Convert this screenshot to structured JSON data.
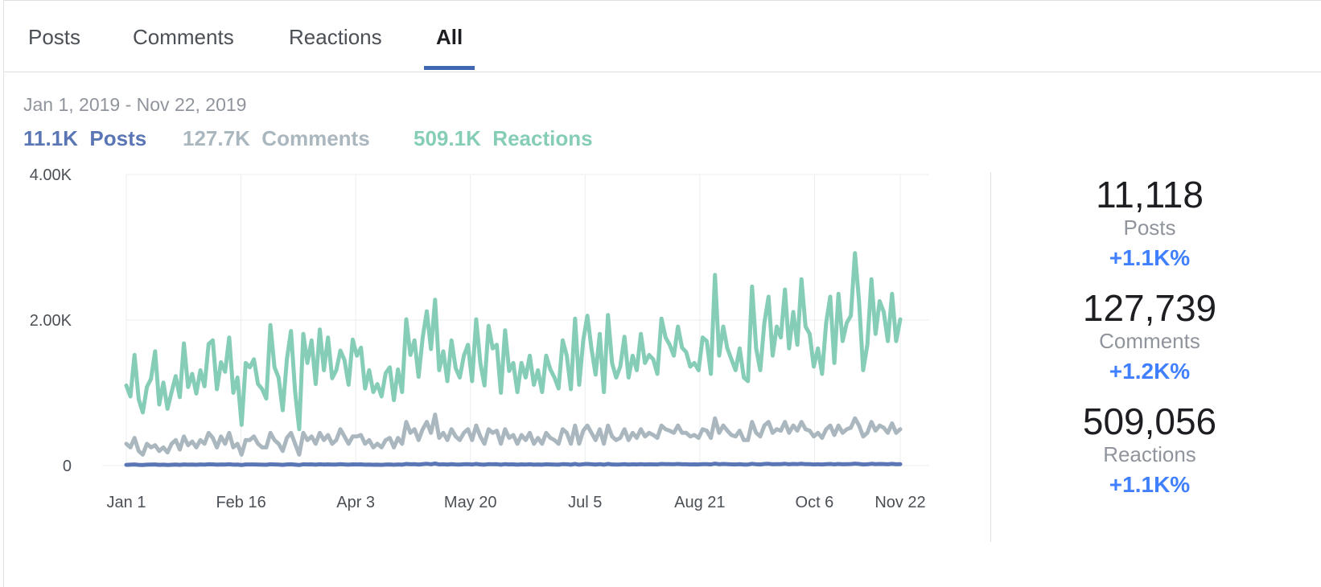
{
  "tabs": [
    {
      "label": "Posts",
      "active": false
    },
    {
      "label": "Comments",
      "active": false
    },
    {
      "label": "Reactions",
      "active": false
    },
    {
      "label": "All",
      "active": true
    }
  ],
  "date_range": "Jan 1, 2019 - Nov 22, 2019",
  "totals": [
    {
      "value": "11.1K",
      "label": "Posts",
      "color": "#5b76b4"
    },
    {
      "value": "127.7K",
      "label": "Comments",
      "color": "#aab7bf"
    },
    {
      "value": "509.1K",
      "label": "Reactions",
      "color": "#86cdb8"
    }
  ],
  "stats": [
    {
      "number": "11,118",
      "label": "Posts",
      "change": "+1.1K%"
    },
    {
      "number": "127,739",
      "label": "Comments",
      "change": "+1.2K%"
    },
    {
      "number": "509,056",
      "label": "Reactions",
      "change": "+1.1K%"
    }
  ],
  "colors": {
    "accent": "#4267b2",
    "change": "#4080ff",
    "posts": "#5b76b4",
    "comments": "#aab7bf",
    "reactions": "#86cdb8"
  },
  "chart_data": {
    "type": "line",
    "xlabel": "",
    "ylabel": "",
    "x_ticks": [
      "Jan 1",
      "Feb 16",
      "Apr 3",
      "May 20",
      "Jul 5",
      "Aug 21",
      "Oct 6",
      "Nov 22"
    ],
    "y_ticks": [
      "0",
      "2.00K",
      "4.00K"
    ],
    "ylim": [
      0,
      4000
    ],
    "grid": true,
    "x_start": "2019-01-01",
    "x_end": "2019-11-22",
    "series": [
      {
        "name": "Reactions",
        "color": "#86cdb8",
        "values": [
          1100,
          1000,
          1500,
          900,
          750,
          1100,
          1200,
          1550,
          850,
          1150,
          800,
          1000,
          1200,
          950,
          1650,
          1100,
          1250,
          1000,
          1300,
          1100,
          1650,
          1700,
          1050,
          1400,
          1300,
          1750,
          1000,
          1200,
          550,
          1400,
          1350,
          1450,
          1100,
          1050,
          900,
          1900,
          1350,
          1200,
          750,
          1450,
          1850,
          1000,
          500,
          1800,
          1400,
          1700,
          1100,
          1850,
          1300,
          1750,
          1200,
          1300,
          1550,
          1450,
          1100,
          1700,
          1500,
          1600,
          1050,
          1300,
          1000,
          1100,
          950,
          1250,
          1350,
          900,
          1300,
          1000,
          2000,
          1500,
          1700,
          1200,
          1750,
          2100,
          1600,
          2250,
          1300,
          1550,
          1150,
          1700,
          1350,
          1200,
          1500,
          1650,
          1150,
          2000,
          1400,
          1100,
          1900,
          1600,
          1650,
          1000,
          1850,
          1300,
          1400,
          1000,
          1400,
          1200,
          1500,
          1100,
          1300,
          1000,
          1500,
          1300,
          1200,
          1050,
          1700,
          1500,
          1050,
          2000,
          1100,
          1700,
          2050,
          1600,
          1250,
          1800,
          1000,
          2050,
          1400,
          1200,
          1350,
          1750,
          1200,
          1500,
          1300,
          1800,
          1400,
          1500,
          1450,
          1250,
          2000,
          1750,
          1650,
          1500,
          1900,
          1600,
          1550,
          1350,
          1400,
          1300,
          1750,
          1700,
          1250,
          2600,
          1500,
          1900,
          1600,
          1450,
          1300,
          1600,
          1200,
          1150,
          2450,
          1600,
          1300,
          1950,
          2300,
          1500,
          1900,
          1750,
          2400,
          1600,
          2100,
          1650,
          2550,
          1900,
          1800,
          1350,
          1600,
          1250,
          1950,
          2300,
          1400,
          2350,
          1700,
          1950,
          2050,
          2900,
          2250,
          1300,
          1650,
          2550,
          1800,
          2250,
          2100,
          1700,
          2350,
          1700,
          2000
        ],
        "display_points": [
          1100,
          950,
          1520,
          910,
          730,
          1080,
          1190,
          1570,
          840,
          1140,
          780,
          1010,
          1230,
          940,
          1680,
          1080,
          1260,
          990,
          1310,
          1090,
          1670,
          1720,
          1050,
          1420,
          1290,
          1760,
          1000,
          1210,
          560,
          1410,
          1350,
          1460,
          1120,
          1050,
          920,
          1930,
          1350,
          1210,
          760,
          1460,
          1850,
          1020,
          500,
          1810,
          1410,
          1720,
          1120,
          1870,
          1310,
          1760,
          1200,
          1310,
          1580,
          1450,
          1110,
          1730,
          1510,
          1620,
          1060,
          1310,
          1010,
          1120,
          950,
          1270,
          1350,
          900,
          1320,
          1010,
          2010,
          1520,
          1720,
          1220,
          1760,
          2120,
          1600,
          2280,
          1310,
          1570,
          1160,
          1720,
          1340,
          1210,
          1510,
          1660,
          1160,
          2010,
          1410,
          1100,
          1920,
          1610,
          1660,
          1000,
          1860,
          1300,
          1410,
          1010,
          1410,
          1210,
          1510,
          1110,
          1310,
          1010,
          1510,
          1320,
          1210,
          1060,
          1720,
          1510,
          1050,
          2020,
          1110,
          1720,
          2060,
          1610,
          1250,
          1810,
          1010,
          2070,
          1410,
          1210,
          1360,
          1770,
          1210,
          1510,
          1310,
          1810,
          1410,
          1520,
          1460,
          1260,
          2020,
          1760,
          1660,
          1510,
          1910,
          1620,
          1560,
          1360,
          1410,
          1310,
          1760,
          1710,
          1260,
          2620,
          1510,
          1910,
          1610,
          1460,
          1310,
          1610,
          1210,
          1160,
          2460,
          1610,
          1310,
          1960,
          2320,
          1510,
          1910,
          1760,
          2420,
          1610,
          2110,
          1660,
          2560,
          1910,
          1810,
          1360,
          1610,
          1260,
          1960,
          2320,
          1410,
          2360,
          1710,
          1960,
          2060,
          2920,
          2260,
          1310,
          1660,
          2560,
          1810,
          2260,
          2110,
          1710,
          2360,
          1710,
          2010
        ]
      },
      {
        "name": "Comments",
        "color": "#aab7bf",
        "values": [
          300,
          250,
          380,
          200,
          150,
          300,
          250,
          280,
          200,
          250,
          180,
          300,
          350,
          220,
          400,
          280,
          330,
          250,
          350,
          300,
          450,
          380,
          250,
          400,
          300,
          450,
          250,
          300,
          150,
          350,
          350,
          400,
          300,
          250,
          250,
          450,
          350,
          300,
          200,
          380,
          450,
          300,
          150,
          450,
          350,
          400,
          300,
          450,
          350,
          420,
          300,
          350,
          500,
          400,
          300,
          400,
          400,
          420,
          300,
          350,
          250,
          300,
          250,
          350,
          380,
          250,
          380,
          300,
          600,
          450,
          500,
          350,
          500,
          600,
          450,
          700,
          380,
          450,
          350,
          500,
          400,
          350,
          450,
          500,
          350,
          550,
          400,
          300,
          500,
          450,
          480,
          300,
          500,
          380,
          420,
          300,
          420,
          350,
          450,
          300,
          380,
          300,
          450,
          380,
          350,
          300,
          500,
          450,
          300,
          550,
          300,
          480,
          550,
          450,
          350,
          500,
          300,
          550,
          400,
          350,
          380,
          500,
          350,
          450,
          380,
          500,
          400,
          450,
          420,
          380,
          550,
          500,
          480,
          450,
          550,
          450,
          450,
          400,
          420,
          380,
          500,
          480,
          380,
          650,
          450,
          550,
          480,
          420,
          400,
          480,
          350,
          350,
          600,
          450,
          400,
          550,
          600,
          450,
          500,
          480,
          600,
          450,
          550,
          480,
          600,
          500,
          480,
          400,
          450,
          380,
          500,
          550,
          420,
          550,
          450,
          500,
          520,
          650,
          550,
          400,
          450,
          600,
          480,
          550,
          520,
          450,
          580,
          450,
          500
        ]
      },
      {
        "name": "Posts",
        "color": "#5b76b4",
        "values": [
          10,
          12,
          15,
          10,
          8,
          12,
          14,
          16,
          10,
          12,
          9,
          11,
          14,
          10,
          16,
          12,
          14,
          11,
          15,
          12,
          18,
          17,
          12,
          15,
          14,
          18,
          12,
          13,
          8,
          15,
          15,
          16,
          13,
          12,
          11,
          18,
          15,
          14,
          10,
          16,
          18,
          12,
          8,
          18,
          15,
          17,
          12,
          18,
          14,
          17,
          13,
          14,
          19,
          16,
          12,
          17,
          16,
          17,
          12,
          14,
          11,
          12,
          10,
          14,
          15,
          11,
          15,
          12,
          22,
          18,
          20,
          14,
          20,
          24,
          18,
          28,
          15,
          18,
          14,
          20,
          16,
          14,
          18,
          20,
          14,
          22,
          16,
          12,
          20,
          18,
          19,
          12,
          20,
          15,
          17,
          12,
          17,
          14,
          18,
          12,
          15,
          12,
          18,
          15,
          14,
          12,
          20,
          18,
          12,
          22,
          12,
          19,
          22,
          18,
          14,
          20,
          12,
          22,
          16,
          14,
          15,
          20,
          14,
          18,
          15,
          20,
          16,
          18,
          17,
          15,
          22,
          20,
          19,
          18,
          22,
          18,
          18,
          16,
          17,
          15,
          20,
          19,
          15,
          26,
          18,
          22,
          19,
          17,
          16,
          19,
          14,
          14,
          24,
          18,
          16,
          22,
          24,
          18,
          20,
          19,
          24,
          18,
          22,
          19,
          24,
          20,
          19,
          16,
          18,
          15,
          20,
          22,
          17,
          22,
          18,
          20,
          21,
          26,
          22,
          16,
          18,
          24,
          19,
          22,
          21,
          18,
          23,
          18,
          20
        ]
      }
    ]
  }
}
